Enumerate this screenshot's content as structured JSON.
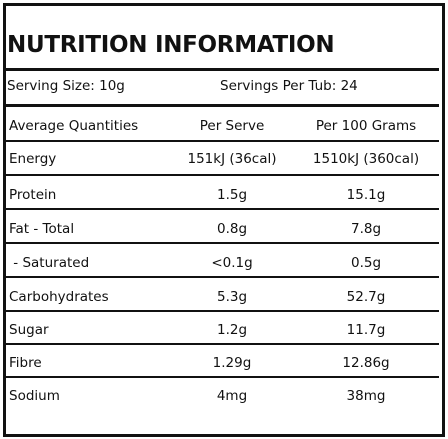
{
  "title": "NUTRITION INFORMATION",
  "serving_size": "Serving Size: 10g",
  "servings_per": "Servings Per Tub: 24",
  "header": {
    "name": "Average Quantities",
    "per_serve": "Per Serve",
    "per_100": "Per 100 Grams"
  },
  "rows": [
    {
      "name": "Energy",
      "per_serve": "151kJ (36cal)",
      "per_100": "1510kJ (360cal)"
    },
    {
      "name": "Protein",
      "per_serve": "1.5g",
      "per_100": "15.1g"
    },
    {
      "name": "Fat - Total",
      "per_serve": "0.8g",
      "per_100": "7.8g"
    },
    {
      "name": " - Saturated",
      "per_serve": "<0.1g",
      "per_100": "0.5g"
    },
    {
      "name": "Carbohydrates",
      "per_serve": "5.3g",
      "per_100": "52.7g"
    },
    {
      "name": "Sugar",
      "per_serve": "1.2g",
      "per_100": "11.7g"
    },
    {
      "name": "Fibre",
      "per_serve": "1.29g",
      "per_100": "12.86g"
    },
    {
      "name": "Sodium",
      "per_serve": "4mg",
      "per_100": "38mg"
    }
  ]
}
